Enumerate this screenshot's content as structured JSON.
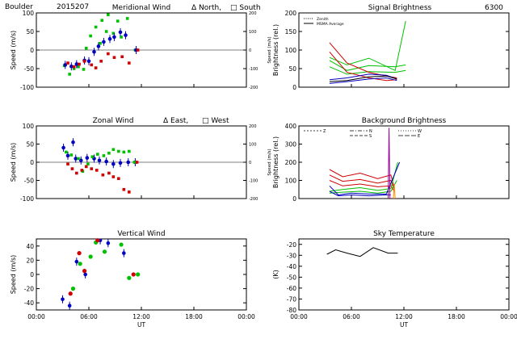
{
  "figure": {
    "header_station": "Boulder",
    "header_date": "2015207"
  },
  "chart_data": [
    {
      "id": "meridional",
      "type": "scatter",
      "title": "Meridional Wind",
      "legend_text": [
        "Δ North,",
        "□ South"
      ],
      "ylabel": "Speed (m/s)",
      "ylabel_right": "Speed (m/s)",
      "ylim": [
        -100,
        100
      ],
      "yticks": [
        -100,
        -50,
        0,
        50,
        100
      ],
      "right_ylim": [
        -200,
        200
      ],
      "right_yticks": [
        -200,
        -100,
        0,
        100,
        200
      ],
      "xlim": [
        0,
        24
      ],
      "xticks": [
        0,
        6,
        12,
        18,
        24
      ],
      "series": [
        {
          "color": "#00c000",
          "marker": "square",
          "points": [
            [
              3.2,
              -42
            ],
            [
              3.8,
              -65
            ],
            [
              4.3,
              -50
            ],
            [
              4.8,
              -45
            ],
            [
              5.4,
              -52
            ],
            [
              5.7,
              5
            ],
            [
              6.2,
              38
            ],
            [
              6.8,
              62
            ],
            [
              7.3,
              18
            ],
            [
              7.5,
              80
            ],
            [
              8.0,
              50
            ],
            [
              8.2,
              95
            ],
            [
              8.8,
              45
            ],
            [
              9.3,
              78
            ],
            [
              9.7,
              35
            ],
            [
              10.4,
              85
            ],
            [
              11.3,
              0
            ]
          ]
        },
        {
          "color": "#0000c0",
          "marker": "errorbar",
          "points": [
            [
              3.3,
              -40
            ],
            [
              4.0,
              -44
            ],
            [
              4.6,
              -38
            ],
            [
              5.5,
              -28
            ],
            [
              6.0,
              -30
            ],
            [
              6.6,
              -5
            ],
            [
              7.1,
              10
            ],
            [
              7.7,
              22
            ],
            [
              8.4,
              30
            ],
            [
              8.9,
              35
            ],
            [
              9.6,
              48
            ],
            [
              10.2,
              40
            ],
            [
              11.4,
              0
            ]
          ]
        },
        {
          "color": "#d00000",
          "marker": "square",
          "points": [
            [
              3.6,
              -35
            ],
            [
              4.3,
              -45
            ],
            [
              4.9,
              -38
            ],
            [
              5.5,
              -30
            ],
            [
              6.3,
              -40
            ],
            [
              6.8,
              -48
            ],
            [
              7.4,
              -30
            ],
            [
              8.2,
              -10
            ],
            [
              8.9,
              -20
            ],
            [
              9.8,
              -18
            ],
            [
              10.6,
              -35
            ],
            [
              11.6,
              0
            ]
          ]
        }
      ]
    },
    {
      "id": "zonal",
      "type": "scatter",
      "title": "Zonal Wind",
      "legend_text": [
        "Δ East,",
        "□ West"
      ],
      "ylabel": "Speed (m/s)",
      "ylabel_right": "Speed (m/s)",
      "ylim": [
        -100,
        100
      ],
      "yticks": [
        -100,
        -50,
        0,
        50,
        100
      ],
      "right_ylim": [
        -200,
        200
      ],
      "right_yticks": [
        -200,
        -100,
        0,
        100,
        200
      ],
      "xlim": [
        0,
        24
      ],
      "xticks": [
        0,
        6,
        12,
        18,
        24
      ],
      "series": [
        {
          "color": "#0000c0",
          "marker": "errorbar",
          "points": [
            [
              3.1,
              40
            ],
            [
              3.6,
              18
            ],
            [
              4.2,
              55
            ],
            [
              4.5,
              10
            ],
            [
              5.1,
              5
            ],
            [
              5.8,
              12
            ],
            [
              6.6,
              10
            ],
            [
              7.2,
              5
            ],
            [
              8.0,
              2
            ],
            [
              8.8,
              -5
            ],
            [
              9.6,
              -2
            ],
            [
              10.5,
              0
            ],
            [
              11.3,
              0
            ]
          ]
        },
        {
          "color": "#00c000",
          "marker": "square",
          "points": [
            [
              3.4,
              28
            ],
            [
              4.0,
              20
            ],
            [
              4.8,
              10
            ],
            [
              5.3,
              -25
            ],
            [
              5.9,
              -5
            ],
            [
              6.4,
              15
            ],
            [
              7.0,
              22
            ],
            [
              7.7,
              18
            ],
            [
              8.3,
              25
            ],
            [
              8.8,
              35
            ],
            [
              9.4,
              30
            ],
            [
              10.0,
              28
            ],
            [
              10.6,
              30
            ],
            [
              11.2,
              0
            ]
          ]
        },
        {
          "color": "#d00000",
          "marker": "square",
          "points": [
            [
              3.6,
              -5
            ],
            [
              4.1,
              -18
            ],
            [
              4.6,
              -30
            ],
            [
              5.2,
              -22
            ],
            [
              5.7,
              -12
            ],
            [
              6.3,
              -18
            ],
            [
              6.9,
              -22
            ],
            [
              7.6,
              -35
            ],
            [
              8.3,
              -30
            ],
            [
              8.8,
              -40
            ],
            [
              9.4,
              -45
            ],
            [
              10.0,
              -75
            ],
            [
              10.6,
              -82
            ],
            [
              11.5,
              0
            ]
          ]
        }
      ]
    },
    {
      "id": "vertical",
      "type": "scatter",
      "title": "Vertical Wind",
      "ylabel": "Speed (m/s)",
      "ylim": [
        -50,
        50
      ],
      "yticks": [
        -40,
        -20,
        0,
        20,
        40
      ],
      "xlim": [
        0,
        24
      ],
      "xticks": [
        0,
        6,
        12,
        18,
        24
      ],
      "xlabel": "UT",
      "xticklabels": [
        "00:00",
        "06:00",
        "12:00",
        "18:00",
        "00:00"
      ],
      "series": [
        {
          "color": "#0000c0",
          "marker": "errorbar",
          "points": [
            [
              3.0,
              -35
            ],
            [
              3.8,
              -44
            ],
            [
              4.6,
              18
            ],
            [
              5.6,
              0
            ],
            [
              7.3,
              48
            ],
            [
              8.2,
              44
            ],
            [
              10.0,
              30
            ]
          ]
        },
        {
          "color": "#00c000",
          "marker": "dot",
          "points": [
            [
              4.2,
              -20
            ],
            [
              5.0,
              15
            ],
            [
              6.2,
              25
            ],
            [
              6.8,
              45
            ],
            [
              7.8,
              32
            ],
            [
              9.7,
              42
            ],
            [
              10.6,
              -5
            ],
            [
              11.6,
              0
            ]
          ]
        },
        {
          "color": "#d00000",
          "marker": "dot",
          "points": [
            [
              3.9,
              -27
            ],
            [
              4.9,
              30
            ],
            [
              5.5,
              5
            ],
            [
              7.0,
              48
            ],
            [
              11.1,
              0
            ]
          ]
        }
      ]
    },
    {
      "id": "signal",
      "type": "line",
      "title": "Signal Brightness",
      "title_right": "6300",
      "ylabel": "Brightness (rel.)",
      "ylim": [
        0,
        200
      ],
      "yticks": [
        0,
        50,
        100,
        150,
        200
      ],
      "xlim": [
        0,
        24
      ],
      "xticks": [
        0,
        6,
        12,
        18,
        24
      ],
      "legend": [
        "Zenith",
        "MSMA Average"
      ],
      "series": [
        {
          "color": "#00c000",
          "x": [
            3.5,
            5.5,
            8,
            11,
            12.2
          ],
          "y": [
            80,
            60,
            78,
            45,
            178
          ]
        },
        {
          "color": "#00c000",
          "x": [
            3.5,
            5.5,
            8,
            11,
            12.2
          ],
          "y": [
            72,
            45,
            58,
            55,
            60
          ]
        },
        {
          "color": "#00c000",
          "x": [
            3.5,
            5.5,
            8,
            11,
            12.2
          ],
          "y": [
            55,
            35,
            42,
            40,
            45
          ]
        },
        {
          "color": "#d00000",
          "x": [
            3.5,
            5.5,
            8,
            10,
            11.2
          ],
          "y": [
            120,
            65,
            40,
            30,
            25
          ]
        },
        {
          "color": "#d00000",
          "x": [
            3.5,
            5.5,
            8,
            10,
            11.2
          ],
          "y": [
            95,
            40,
            25,
            18,
            20
          ]
        },
        {
          "color": "#0000c0",
          "x": [
            3.5,
            5.5,
            8,
            10,
            11.2
          ],
          "y": [
            20,
            25,
            35,
            32,
            22
          ]
        },
        {
          "color": "#0000c0",
          "x": [
            3.5,
            5.5,
            8,
            10,
            11.2
          ],
          "y": [
            10,
            15,
            22,
            25,
            18
          ]
        },
        {
          "color": "#000000",
          "x": [
            3.5,
            5.5,
            8,
            10,
            11.2
          ],
          "y": [
            15,
            18,
            28,
            30,
            22
          ]
        }
      ]
    },
    {
      "id": "background",
      "type": "line",
      "title": "Background Brightness",
      "ylabel": "Brightness (rel.)",
      "ylim": [
        0,
        400
      ],
      "yticks": [
        0,
        100,
        200,
        300,
        400
      ],
      "xlim": [
        0,
        24
      ],
      "xticks": [
        0,
        6,
        12,
        18,
        24
      ],
      "legend": [
        "Z",
        "N",
        "S",
        "W",
        "E"
      ],
      "series": [
        {
          "color": "#d00000",
          "x": [
            3.5,
            5,
            7,
            9,
            10.5,
            10.9
          ],
          "y": [
            160,
            120,
            140,
            110,
            130,
            60
          ]
        },
        {
          "color": "#d00000",
          "x": [
            3.5,
            5,
            7,
            9,
            10.5,
            10.9
          ],
          "y": [
            130,
            95,
            105,
            85,
            100,
            50
          ]
        },
        {
          "color": "#d00000",
          "x": [
            3.5,
            5,
            7,
            9,
            10.5,
            10.9
          ],
          "y": [
            100,
            70,
            80,
            65,
            70,
            40
          ]
        },
        {
          "color": "#00c000",
          "x": [
            3.5,
            5,
            7,
            9,
            10.5,
            11.3
          ],
          "y": [
            40,
            50,
            60,
            45,
            55,
            200
          ]
        },
        {
          "color": "#00c000",
          "x": [
            3.5,
            5,
            7,
            9,
            10.5,
            11.2
          ],
          "y": [
            30,
            35,
            40,
            30,
            40,
            100
          ]
        },
        {
          "color": "#0000c0",
          "x": [
            3.5,
            4.5,
            6,
            8,
            10,
            11.5
          ],
          "y": [
            70,
            20,
            30,
            25,
            25,
            200
          ]
        },
        {
          "color": "#0000c0",
          "x": [
            3.5,
            4.5,
            6,
            8,
            10,
            10.5
          ],
          "y": [
            40,
            15,
            20,
            15,
            20,
            20
          ]
        },
        {
          "color": "#ff8c00",
          "x": [
            10.8,
            10.9,
            11.0
          ],
          "y": [
            0,
            80,
            0
          ]
        },
        {
          "color": "#a000a0",
          "x": [
            10.2,
            10.3,
            10.4
          ],
          "y": [
            0,
            390,
            0
          ]
        }
      ]
    },
    {
      "id": "skytemp",
      "type": "line",
      "title": "Sky Temperature",
      "ylabel": "(K)",
      "ylim": [
        -80,
        -15
      ],
      "yticks": [
        -80,
        -70,
        -60,
        -50,
        -40,
        -30,
        -20
      ],
      "xlim": [
        0,
        24
      ],
      "xticks": [
        0,
        6,
        12,
        18,
        24
      ],
      "xlabel": "UT",
      "xticklabels": [
        "00:00",
        "06:00",
        "12:00",
        "18:00",
        "00:00"
      ],
      "series": [
        {
          "color": "#000000",
          "x": [
            3.2,
            4.2,
            5.5,
            7.0,
            8.5,
            10.2,
            11.3
          ],
          "y": [
            -29,
            -25,
            -28,
            -31,
            -23,
            -28,
            -28
          ]
        }
      ]
    }
  ]
}
